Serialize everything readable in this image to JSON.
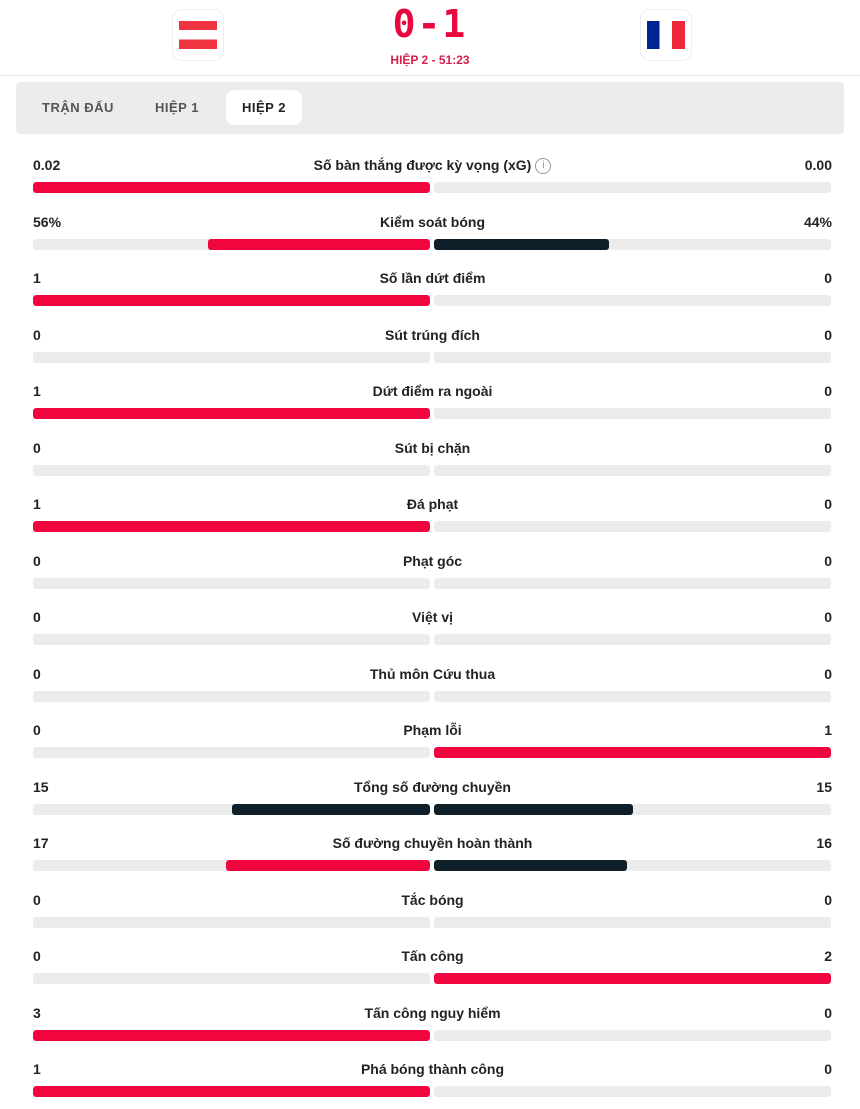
{
  "match": {
    "home_flag": "austria-flag",
    "away_flag": "france-flag",
    "score": "0-1",
    "period": "HIỆP 2 - 51:23"
  },
  "tabs": [
    {
      "label": "TRẬN ĐẤU",
      "active": false
    },
    {
      "label": "HIỆP 1",
      "active": false
    },
    {
      "label": "HIỆP 2",
      "active": true
    }
  ],
  "colors": {
    "red": "#f0053f",
    "dark": "#0f1f29"
  },
  "stats": [
    {
      "label": "Số bàn thắng được kỳ vọng (xG)",
      "info": "i",
      "home": "0.02",
      "away": "0.00",
      "home_fill": 1,
      "away_fill": 0,
      "home_color": "red",
      "away_color": "red"
    },
    {
      "label": "Kiểm soát bóng",
      "home": "56%",
      "away": "44%",
      "home_fill": 0.56,
      "away_fill": 0.44,
      "home_color": "red",
      "away_color": "dark"
    },
    {
      "label": "Số lần dứt điểm",
      "home": "1",
      "away": "0",
      "home_fill": 1,
      "away_fill": 0,
      "home_color": "red",
      "away_color": "red"
    },
    {
      "label": "Sút trúng đích",
      "home": "0",
      "away": "0",
      "home_fill": 0,
      "away_fill": 0,
      "home_color": "red",
      "away_color": "red"
    },
    {
      "label": "Dứt điểm ra ngoài",
      "home": "1",
      "away": "0",
      "home_fill": 1,
      "away_fill": 0,
      "home_color": "red",
      "away_color": "red"
    },
    {
      "label": "Sút bị chặn",
      "home": "0",
      "away": "0",
      "home_fill": 0,
      "away_fill": 0,
      "home_color": "red",
      "away_color": "red"
    },
    {
      "label": "Đá phạt",
      "home": "1",
      "away": "0",
      "home_fill": 1,
      "away_fill": 0,
      "home_color": "red",
      "away_color": "red"
    },
    {
      "label": "Phạt góc",
      "home": "0",
      "away": "0",
      "home_fill": 0,
      "away_fill": 0,
      "home_color": "red",
      "away_color": "red"
    },
    {
      "label": "Việt vị",
      "home": "0",
      "away": "0",
      "home_fill": 0,
      "away_fill": 0,
      "home_color": "red",
      "away_color": "red"
    },
    {
      "label": "Thủ môn Cứu thua",
      "home": "0",
      "away": "0",
      "home_fill": 0,
      "away_fill": 0,
      "home_color": "red",
      "away_color": "red"
    },
    {
      "label": "Phạm lỗi",
      "home": "0",
      "away": "1",
      "home_fill": 0,
      "away_fill": 1,
      "home_color": "red",
      "away_color": "red"
    },
    {
      "label": "Tổng số đường chuyền",
      "home": "15",
      "away": "15",
      "home_fill": 0.5,
      "away_fill": 0.5,
      "home_color": "dark",
      "away_color": "dark"
    },
    {
      "label": "Số đường chuyền hoàn thành",
      "home": "17",
      "away": "16",
      "home_fill": 0.515,
      "away_fill": 0.485,
      "home_color": "red",
      "away_color": "dark"
    },
    {
      "label": "Tắc bóng",
      "home": "0",
      "away": "0",
      "home_fill": 0,
      "away_fill": 0,
      "home_color": "red",
      "away_color": "red"
    },
    {
      "label": "Tấn công",
      "home": "0",
      "away": "2",
      "home_fill": 0,
      "away_fill": 1,
      "home_color": "red",
      "away_color": "red"
    },
    {
      "label": "Tấn công nguy hiểm",
      "home": "3",
      "away": "0",
      "home_fill": 1,
      "away_fill": 0,
      "home_color": "red",
      "away_color": "red"
    },
    {
      "label": "Phá bóng thành công",
      "home": "1",
      "away": "0",
      "home_fill": 1,
      "away_fill": 0,
      "home_color": "red",
      "away_color": "red"
    }
  ]
}
